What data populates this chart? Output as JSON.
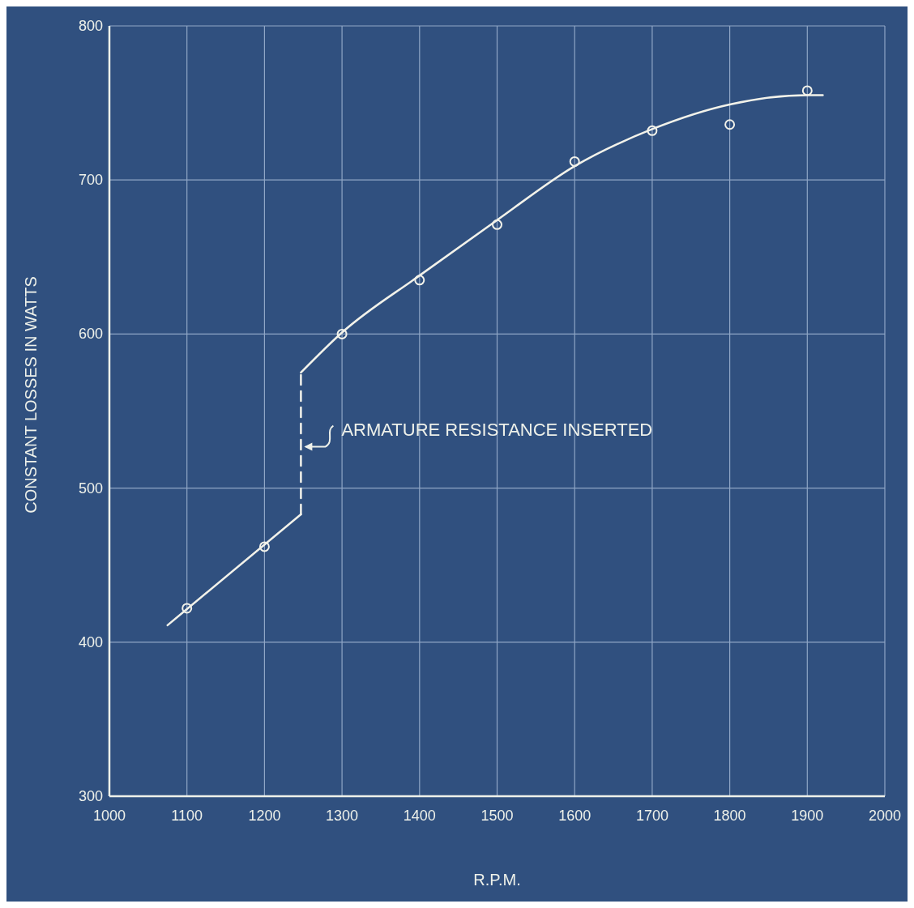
{
  "chart_data": {
    "type": "scatter",
    "xlabel": "R.P.M.",
    "ylabel": "CONSTANT LOSSES IN WATTS",
    "xlim": [
      1000,
      2000
    ],
    "xticks": [
      1000,
      1100,
      1200,
      1300,
      1400,
      1500,
      1600,
      1700,
      1800,
      1900,
      2000
    ],
    "ylim": [
      300,
      800
    ],
    "yticks": [
      300,
      400,
      500,
      600,
      700,
      800
    ],
    "grid": true,
    "series": [
      {
        "marker": "circle",
        "color": "#f2f2ea",
        "x": [
          1100,
          1200,
          1300,
          1400,
          1500,
          1600,
          1700,
          1800,
          1900
        ],
        "values": [
          422,
          462,
          600,
          635,
          671,
          712,
          732,
          736,
          758
        ]
      },
      {
        "type": "line",
        "marker": "none",
        "color": "#f2f2ea",
        "line_style": "solid",
        "x": [
          1075,
          1247
        ],
        "values": [
          411,
          483
        ]
      },
      {
        "type": "line",
        "marker": "none",
        "color": "#f2f2ea",
        "line_style": "dashed",
        "x": [
          1247,
          1247
        ],
        "values": [
          483,
          575
        ]
      },
      {
        "type": "line",
        "marker": "none",
        "color": "#f2f2ea",
        "line_style": "solid",
        "x": [
          1247,
          1300,
          1400,
          1500,
          1600,
          1700,
          1800,
          1900,
          1920
        ],
        "values": [
          575,
          601,
          638,
          674,
          709,
          733,
          749,
          755,
          755
        ]
      }
    ],
    "annotations": [
      {
        "text": "ARMATURE RESISTANCE INSERTED",
        "x": 1247,
        "y": 530
      }
    ]
  }
}
